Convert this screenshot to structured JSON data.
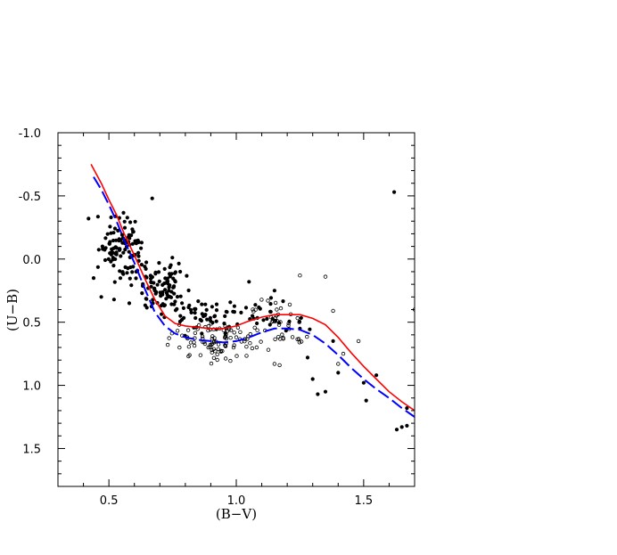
{
  "chart_data": {
    "type": "scatter",
    "title": "",
    "xlabel": "(B−V)",
    "ylabel": "(U−B)",
    "xlim": [
      0.3,
      1.7
    ],
    "ylim": [
      1.8,
      -1.0
    ],
    "y_inverted": true,
    "grid": false,
    "x_ticks": [
      0.5,
      1.0,
      1.5
    ],
    "x_tick_labels": [
      "0.5",
      "1.0",
      "1.5"
    ],
    "y_ticks": [
      -1.0,
      -0.5,
      0.0,
      0.5,
      1.0,
      1.5
    ],
    "y_tick_labels": [
      "-1.0",
      "-0.5",
      "0.0",
      "0.5",
      "1.0",
      "1.5"
    ],
    "series": [
      {
        "style": "filled-dots",
        "color": "#000000",
        "seed": 11,
        "clusters": [
          {
            "count": 110,
            "x": [
              0.45,
              0.66
            ],
            "y": [
              -0.38,
              0.2
            ]
          },
          {
            "count": 90,
            "x": [
              0.58,
              0.82
            ],
            "y": [
              -0.05,
              0.45
            ]
          },
          {
            "count": 55,
            "x": [
              0.7,
              1.05
            ],
            "y": [
              0.3,
              0.62
            ]
          },
          {
            "count": 25,
            "x": [
              1.0,
              1.3
            ],
            "y": [
              0.3,
              0.62
            ]
          }
        ],
        "points": [
          [
            0.42,
            -0.32
          ],
          [
            0.44,
            0.15
          ],
          [
            0.47,
            0.3
          ],
          [
            0.52,
            0.32
          ],
          [
            0.58,
            0.35
          ],
          [
            0.67,
            -0.48
          ],
          [
            0.78,
            0.1
          ],
          [
            1.05,
            0.18
          ],
          [
            1.15,
            0.25
          ],
          [
            1.25,
            0.55
          ],
          [
            1.28,
            0.78
          ],
          [
            1.3,
            0.95
          ],
          [
            1.32,
            1.07
          ],
          [
            1.35,
            1.05
          ],
          [
            1.38,
            0.65
          ],
          [
            1.4,
            0.9
          ],
          [
            1.5,
            0.98
          ],
          [
            1.51,
            1.12
          ],
          [
            1.55,
            0.92
          ],
          [
            1.62,
            -0.53
          ],
          [
            1.63,
            1.35
          ],
          [
            1.65,
            1.33
          ],
          [
            1.67,
            1.32
          ],
          [
            1.67,
            1.18
          ]
        ]
      },
      {
        "style": "open-circles",
        "color": "#000000",
        "seed": 29,
        "clusters": [
          {
            "count": 90,
            "x": [
              0.72,
              1.1
            ],
            "y": [
              0.45,
              0.85
            ]
          },
          {
            "count": 45,
            "x": [
              1.0,
              1.3
            ],
            "y": [
              0.3,
              0.75
            ]
          }
        ],
        "points": [
          [
            1.15,
            0.83
          ],
          [
            1.17,
            0.84
          ],
          [
            1.25,
            0.13
          ],
          [
            1.35,
            0.14
          ],
          [
            1.38,
            0.41
          ],
          [
            1.4,
            0.83
          ],
          [
            1.42,
            0.75
          ],
          [
            1.48,
            0.65
          ],
          [
            1.7,
            0.4
          ]
        ]
      },
      {
        "style": "solid-line",
        "color": "#ff0000",
        "x": [
          0.43,
          0.47,
          0.5,
          0.53,
          0.56,
          0.6,
          0.64,
          0.68,
          0.72,
          0.76,
          0.8,
          0.85,
          0.9,
          0.95,
          1.0,
          1.05,
          1.1,
          1.15,
          1.2,
          1.25,
          1.3,
          1.35,
          1.4,
          1.45,
          1.5,
          1.55,
          1.6,
          1.65,
          1.7
        ],
        "y": [
          -0.75,
          -0.6,
          -0.47,
          -0.35,
          -0.2,
          -0.03,
          0.15,
          0.32,
          0.45,
          0.51,
          0.53,
          0.54,
          0.55,
          0.55,
          0.53,
          0.49,
          0.46,
          0.44,
          0.44,
          0.44,
          0.47,
          0.52,
          0.62,
          0.74,
          0.85,
          0.95,
          1.05,
          1.13,
          1.2
        ]
      },
      {
        "style": "dashed-line",
        "color": "#0000ff",
        "x": [
          0.44,
          0.47,
          0.5,
          0.53,
          0.56,
          0.6,
          0.64,
          0.68,
          0.72,
          0.76,
          0.8,
          0.85,
          0.9,
          0.95,
          1.0,
          1.05,
          1.1,
          1.15,
          1.2,
          1.25,
          1.3,
          1.35,
          1.4,
          1.45,
          1.5,
          1.55,
          1.6,
          1.65,
          1.7
        ],
        "y": [
          -0.65,
          -0.55,
          -0.43,
          -0.3,
          -0.15,
          0.03,
          0.23,
          0.42,
          0.53,
          0.59,
          0.62,
          0.64,
          0.65,
          0.66,
          0.65,
          0.62,
          0.58,
          0.55,
          0.55,
          0.56,
          0.6,
          0.67,
          0.76,
          0.86,
          0.95,
          1.03,
          1.1,
          1.18,
          1.25
        ]
      }
    ]
  }
}
